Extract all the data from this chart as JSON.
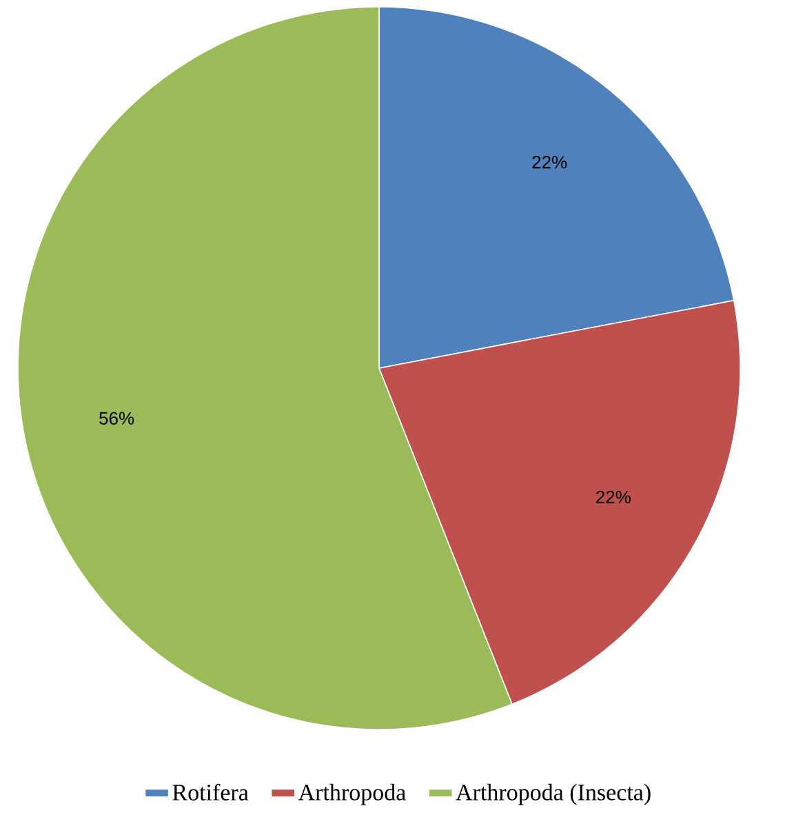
{
  "chart_data": {
    "type": "pie",
    "categories": [
      "Rotifera",
      "Arthropoda",
      "Arthropoda (Insecta)"
    ],
    "values": [
      22,
      22,
      56
    ],
    "colors": [
      "#4f81bd",
      "#c0504d",
      "#9bbb59"
    ],
    "value_labels": [
      "22%",
      "22%",
      "56%"
    ],
    "legend": "bottom"
  }
}
